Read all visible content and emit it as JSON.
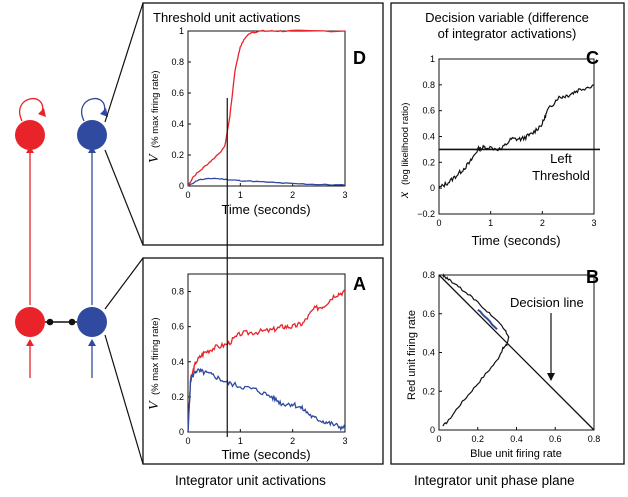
{
  "colors": {
    "red": "#e8242a",
    "blue": "#2f4a9e",
    "black": "#111111"
  },
  "circuit": {
    "units": [
      {
        "name": "red-threshold-unit",
        "color": "red",
        "self_loop": true
      },
      {
        "name": "blue-threshold-unit",
        "color": "blue",
        "self_loop": true
      },
      {
        "name": "red-integrator-unit",
        "color": "red"
      },
      {
        "name": "blue-integrator-unit",
        "color": "blue"
      }
    ],
    "inhibition": "mutual-inhibition-link"
  },
  "panels": {
    "D": {
      "letter": "D",
      "title": "Threshold unit activations",
      "xlabel": "Time (seconds)",
      "ylabel_sym": "V",
      "ylabel_text": "(% max firing rate)",
      "xticks": [
        "0",
        "1",
        "2",
        "3"
      ],
      "yticks": [
        "0",
        "0.2",
        "0.4",
        "0.6",
        "0.8",
        "1"
      ]
    },
    "A": {
      "letter": "A",
      "xlabel": "Time (seconds)",
      "ylabel_sym": "V",
      "ylabel_text": "(% max firing rate)",
      "xticks": [
        "0",
        "1",
        "2",
        "3"
      ],
      "yticks": [
        "0",
        "0.2",
        "0.4",
        "0.6",
        "0.8"
      ]
    },
    "C": {
      "letter": "C",
      "title_line1": "Decision variable (difference",
      "title_line2": "of integrator activations)",
      "xlabel": "Time (seconds)",
      "ylabel_sym": "x",
      "ylabel_text": "(log likelihood ratio)",
      "threshold_label_1": "Left",
      "threshold_label_2": "Threshold",
      "xticks": [
        "0",
        "1",
        "2",
        "3"
      ],
      "yticks": [
        "−0.2",
        "0",
        "0.2",
        "0.4",
        "0.6",
        "0.8",
        "1"
      ]
    },
    "B": {
      "letter": "B",
      "xlabel": "Blue unit firing rate",
      "ylabel": "Red unit firing rate",
      "decision_label": "Decision line",
      "xticks": [
        "0",
        "0.2",
        "0.4",
        "0.6",
        "0.8"
      ],
      "yticks": [
        "0",
        "0.2",
        "0.4",
        "0.6",
        "0.8"
      ]
    }
  },
  "captions": {
    "left": "Integrator unit activations",
    "right": "Integrator unit phase plane"
  },
  "chart_data": [
    {
      "panel": "D",
      "type": "line",
      "xlim": [
        0,
        3
      ],
      "ylim": [
        0,
        1
      ],
      "series": [
        {
          "color": "red",
          "x": [
            0,
            0.1,
            0.3,
            0.5,
            0.7,
            0.8,
            0.9,
            1.0,
            1.1,
            1.2,
            1.4,
            1.6,
            1.8,
            2.2,
            3.0
          ],
          "y": [
            0,
            0.06,
            0.12,
            0.18,
            0.25,
            0.45,
            0.75,
            0.9,
            0.96,
            0.99,
            1.0,
            1.0,
            1.0,
            1.0,
            1.0
          ]
        },
        {
          "color": "blue",
          "x": [
            0,
            0.2,
            0.5,
            0.8,
            1.0,
            1.5,
            2.0,
            2.5,
            3.0
          ],
          "y": [
            0,
            0.04,
            0.05,
            0.04,
            0.035,
            0.025,
            0.015,
            0.01,
            0.005
          ]
        }
      ],
      "vline_x": 0.75
    },
    {
      "panel": "A",
      "type": "line",
      "xlim": [
        0,
        3
      ],
      "ylim": [
        0,
        0.9
      ],
      "series": [
        {
          "color": "red",
          "x": [
            0,
            0.05,
            0.15,
            0.3,
            0.5,
            0.75,
            1.0,
            1.3,
            1.6,
            1.8,
            2.0,
            2.2,
            2.4,
            2.6,
            2.8,
            3.0
          ],
          "y": [
            0,
            0.3,
            0.4,
            0.45,
            0.48,
            0.5,
            0.56,
            0.57,
            0.58,
            0.6,
            0.6,
            0.62,
            0.7,
            0.72,
            0.78,
            0.8
          ]
        },
        {
          "color": "blue",
          "x": [
            0,
            0.05,
            0.15,
            0.3,
            0.5,
            0.75,
            1.0,
            1.3,
            1.6,
            1.8,
            2.0,
            2.2,
            2.4,
            2.6,
            2.8,
            3.0
          ],
          "y": [
            0,
            0.3,
            0.35,
            0.34,
            0.32,
            0.28,
            0.26,
            0.24,
            0.2,
            0.16,
            0.16,
            0.13,
            0.08,
            0.06,
            0.04,
            0.02
          ]
        }
      ],
      "vline_x": 0.75
    },
    {
      "panel": "C",
      "type": "line",
      "xlim": [
        0,
        3
      ],
      "ylim": [
        -0.2,
        1
      ],
      "series": [
        {
          "color": "black",
          "x": [
            0,
            0.2,
            0.4,
            0.6,
            0.75,
            0.9,
            1.2,
            1.4,
            1.6,
            1.8,
            2.0,
            2.1,
            2.3,
            2.5,
            2.7,
            3.0
          ],
          "y": [
            0,
            0.05,
            0.12,
            0.2,
            0.3,
            0.32,
            0.3,
            0.38,
            0.38,
            0.42,
            0.5,
            0.6,
            0.7,
            0.72,
            0.76,
            0.8
          ]
        }
      ],
      "threshold_y": 0.3
    },
    {
      "panel": "B",
      "type": "line",
      "xlim": [
        0,
        0.8
      ],
      "ylim": [
        0,
        0.8
      ],
      "decision_line": {
        "from": [
          0,
          0.8
        ],
        "to": [
          0.8,
          0
        ]
      },
      "series": [
        {
          "color": "black",
          "x": [
            0.02,
            0.05,
            0.1,
            0.15,
            0.2,
            0.25,
            0.3,
            0.33,
            0.35,
            0.36,
            0.34,
            0.3,
            0.26,
            0.2,
            0.15,
            0.1,
            0.06,
            0.03,
            0.02
          ],
          "y": [
            0.02,
            0.05,
            0.12,
            0.18,
            0.24,
            0.3,
            0.36,
            0.42,
            0.44,
            0.48,
            0.52,
            0.56,
            0.6,
            0.66,
            0.7,
            0.74,
            0.77,
            0.79,
            0.8
          ]
        },
        {
          "color": "blue",
          "x": [
            0.2,
            0.25,
            0.3
          ],
          "y": [
            0.62,
            0.57,
            0.52
          ]
        }
      ]
    }
  ]
}
